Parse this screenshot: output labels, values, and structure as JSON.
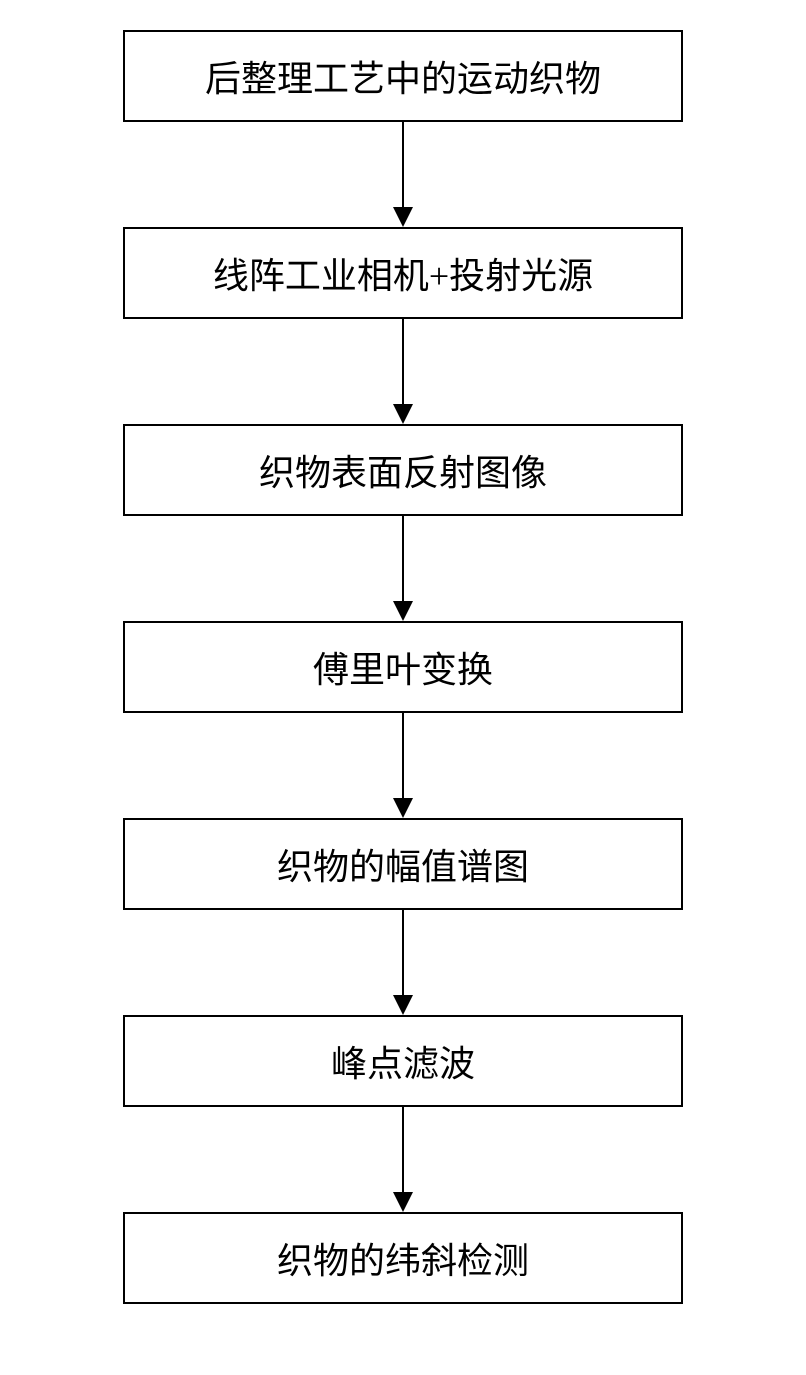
{
  "flowchart": {
    "type": "flowchart",
    "direction": "vertical",
    "background_color": "#ffffff",
    "box_border_color": "#000000",
    "box_border_width": 2,
    "box_fill_color": "#ffffff",
    "text_color": "#000000",
    "font_size": 36,
    "font_family": "SimSun",
    "arrow_color": "#000000",
    "arrow_line_width": 2,
    "arrow_line_length": 85,
    "arrow_head_size": 20,
    "box_min_width": 560,
    "box_padding_vertical": 18,
    "box_padding_horizontal": 30,
    "nodes": [
      {
        "id": "n1",
        "label": "后整理工艺中的运动织物"
      },
      {
        "id": "n2",
        "label": "线阵工业相机+投射光源"
      },
      {
        "id": "n3",
        "label": "织物表面反射图像"
      },
      {
        "id": "n4",
        "label": "傅里叶变换"
      },
      {
        "id": "n5",
        "label": "织物的幅值谱图"
      },
      {
        "id": "n6",
        "label": "峰点滤波"
      },
      {
        "id": "n7",
        "label": "织物的纬斜检测"
      }
    ],
    "edges": [
      {
        "from": "n1",
        "to": "n2"
      },
      {
        "from": "n2",
        "to": "n3"
      },
      {
        "from": "n3",
        "to": "n4"
      },
      {
        "from": "n4",
        "to": "n5"
      },
      {
        "from": "n5",
        "to": "n6"
      },
      {
        "from": "n6",
        "to": "n7"
      }
    ]
  }
}
